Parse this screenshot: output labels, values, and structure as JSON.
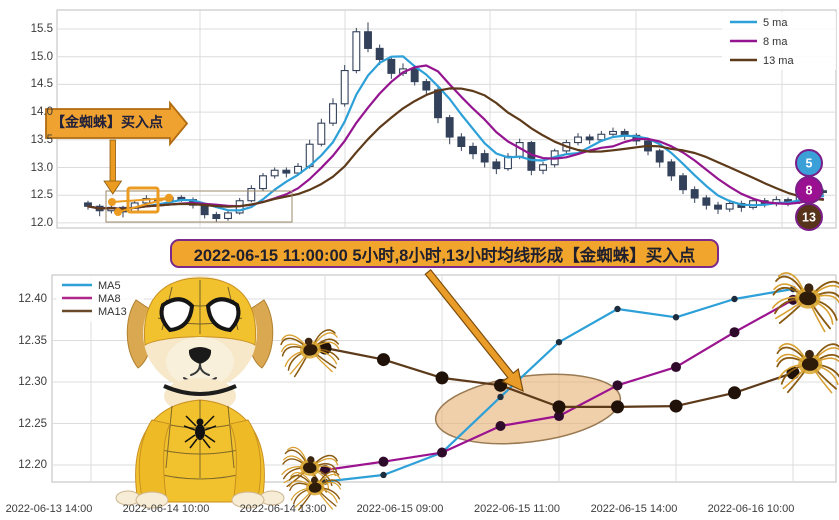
{
  "callout": {
    "text": "2022-06-15 11:00:00 5小时,8小时,13小时均线形成【金蜘蛛】买入点"
  },
  "top_chart": {
    "annotation_label": "【金蜘蛛】买入点",
    "legend": [
      {
        "label": "5 ma",
        "color": "#2da0d8"
      },
      {
        "label": "8 ma",
        "color": "#951591"
      },
      {
        "label": "13 ma",
        "color": "#5d3a1a"
      }
    ],
    "badges": [
      {
        "label": "5",
        "color": "#3b9fd8"
      },
      {
        "label": "8",
        "color": "#9b1090"
      },
      {
        "label": "13",
        "color": "#57331a"
      }
    ]
  },
  "bottom_chart": {
    "legend": [
      {
        "label": "MA5",
        "color": "#2da0d8"
      },
      {
        "label": "MA8",
        "color": "#b0268a"
      },
      {
        "label": "MA13",
        "color": "#6b4a2a"
      }
    ]
  },
  "colors": {
    "candle": "#33415a",
    "grid": "#dcdcdc",
    "spine": "#bdbdbd",
    "orange": "#efa130",
    "orange_dark": "#a86a10",
    "purple_border": "#7b2a8b",
    "ellipse_fill": "#e7b277",
    "ellipse_stroke": "#9a7a52"
  },
  "chart_data": [
    {
      "type": "candlestick",
      "title": "",
      "ylabel": "",
      "ylim": [
        11.95,
        15.75
      ],
      "y_ticks": [
        "15.5",
        "15.0",
        "14.5",
        "14.0",
        "13.5",
        "13.0",
        "12.5",
        "12.0"
      ],
      "y_tick_values": [
        15.5,
        15.0,
        14.5,
        14.0,
        13.5,
        13.0,
        12.5,
        12.0
      ],
      "grid": true,
      "legend_position": "upper right",
      "ma_windows": [
        5,
        8,
        13
      ],
      "ma_colors": [
        "#2da0d8",
        "#951591",
        "#5d3a1a"
      ],
      "candles_ohlc": [
        [
          12.36,
          12.4,
          12.24,
          12.3
        ],
        [
          12.3,
          12.34,
          12.12,
          12.22
        ],
        [
          12.22,
          12.33,
          12.17,
          12.28
        ],
        [
          12.28,
          12.31,
          12.1,
          12.2
        ],
        [
          12.2,
          12.4,
          12.17,
          12.36
        ],
        [
          12.36,
          12.5,
          12.33,
          12.44
        ],
        [
          12.44,
          12.49,
          12.34,
          12.4
        ],
        [
          12.4,
          12.52,
          12.37,
          12.46
        ],
        [
          12.46,
          12.5,
          12.38,
          12.42
        ],
        [
          12.42,
          12.46,
          12.26,
          12.32
        ],
        [
          12.32,
          12.35,
          12.08,
          12.15
        ],
        [
          12.15,
          12.2,
          12.02,
          12.08
        ],
        [
          12.08,
          12.24,
          12.04,
          12.18
        ],
        [
          12.18,
          12.45,
          12.15,
          12.4
        ],
        [
          12.4,
          12.68,
          12.37,
          12.62
        ],
        [
          12.62,
          12.9,
          12.58,
          12.85
        ],
        [
          12.85,
          13.0,
          12.8,
          12.95
        ],
        [
          12.95,
          13.0,
          12.82,
          12.9
        ],
        [
          12.9,
          13.08,
          12.86,
          13.02
        ],
        [
          13.02,
          13.5,
          12.98,
          13.42
        ],
        [
          13.42,
          13.88,
          13.38,
          13.8
        ],
        [
          13.8,
          14.25,
          13.75,
          14.15
        ],
        [
          14.15,
          14.85,
          14.1,
          14.75
        ],
        [
          14.75,
          15.52,
          14.7,
          15.45
        ],
        [
          15.45,
          15.62,
          15.08,
          15.15
        ],
        [
          15.15,
          15.22,
          14.85,
          14.95
        ],
        [
          14.95,
          15.0,
          14.6,
          14.7
        ],
        [
          14.7,
          14.88,
          14.65,
          14.78
        ],
        [
          14.78,
          14.82,
          14.48,
          14.55
        ],
        [
          14.55,
          14.6,
          14.3,
          14.4
        ],
        [
          14.4,
          14.48,
          13.8,
          13.9
        ],
        [
          13.9,
          13.95,
          13.42,
          13.55
        ],
        [
          13.55,
          13.62,
          13.3,
          13.38
        ],
        [
          13.38,
          13.45,
          13.15,
          13.25
        ],
        [
          13.25,
          13.32,
          13.0,
          13.1
        ],
        [
          13.1,
          13.16,
          12.88,
          12.98
        ],
        [
          12.98,
          13.26,
          12.94,
          13.2
        ],
        [
          13.2,
          13.52,
          13.15,
          13.45
        ],
        [
          13.45,
          13.48,
          12.86,
          12.95
        ],
        [
          12.95,
          13.1,
          12.88,
          13.05
        ],
        [
          13.05,
          13.34,
          13.0,
          13.3
        ],
        [
          13.3,
          13.5,
          13.25,
          13.45
        ],
        [
          13.45,
          13.62,
          13.4,
          13.55
        ],
        [
          13.55,
          13.6,
          13.42,
          13.5
        ],
        [
          13.5,
          13.66,
          13.46,
          13.6
        ],
        [
          13.6,
          13.72,
          13.55,
          13.65
        ],
        [
          13.65,
          13.7,
          13.5,
          13.58
        ],
        [
          13.58,
          13.62,
          13.4,
          13.48
        ],
        [
          13.48,
          13.52,
          13.22,
          13.3
        ],
        [
          13.3,
          13.34,
          13.0,
          13.1
        ],
        [
          13.1,
          13.15,
          12.76,
          12.85
        ],
        [
          12.85,
          12.9,
          12.52,
          12.6
        ],
        [
          12.6,
          12.66,
          12.36,
          12.45
        ],
        [
          12.45,
          12.5,
          12.24,
          12.32
        ],
        [
          12.32,
          12.38,
          12.16,
          12.25
        ],
        [
          12.25,
          12.42,
          12.2,
          12.35
        ],
        [
          12.35,
          12.4,
          12.2,
          12.28
        ],
        [
          12.28,
          12.46,
          12.24,
          12.4
        ],
        [
          12.4,
          12.45,
          12.28,
          12.35
        ],
        [
          12.35,
          12.48,
          12.3,
          12.42
        ],
        [
          12.42,
          12.46,
          12.3,
          12.38
        ],
        [
          12.38,
          12.56,
          12.34,
          12.5
        ],
        [
          12.5,
          12.64,
          12.46,
          12.58
        ],
        [
          12.58,
          12.62,
          12.48,
          12.55
        ]
      ]
    },
    {
      "type": "line",
      "title": "",
      "ylim": [
        12.175,
        12.425
      ],
      "y_ticks": [
        "12.40",
        "12.35",
        "12.30",
        "12.25",
        "12.20"
      ],
      "y_tick_values": [
        12.4,
        12.35,
        12.3,
        12.25,
        12.2
      ],
      "x_tick_labels": [
        "2022-06-13 14:00",
        "2022-06-14 10:00",
        "2022-06-14 13:00",
        "2022-06-15 09:00",
        "2022-06-15 11:00",
        "2022-06-15 14:00",
        "2022-06-16 10:00"
      ],
      "grid": true,
      "legend_position": "upper left",
      "x_positions_gridline_units": [
        2,
        2.5,
        3,
        3.5,
        4,
        4.5,
        5,
        5.5,
        6
      ],
      "series": [
        {
          "name": "MA5",
          "color": "#2da0d8",
          "marker_color": "#1d2d3e",
          "marker_size": 3.2,
          "values": [
            12.18,
            12.188,
            12.215,
            12.282,
            12.348,
            12.388,
            12.378,
            12.4,
            12.412
          ]
        },
        {
          "name": "MA8",
          "color": "#9c1390",
          "marker_color": "#2e0b2a",
          "marker_size": 5.0,
          "values": [
            12.194,
            12.204,
            12.215,
            12.247,
            12.259,
            12.296,
            12.318,
            12.36,
            12.399
          ]
        },
        {
          "name": "MA13",
          "color": "#5d3a1a",
          "marker_color": "#201208",
          "marker_size": 6.5,
          "values": [
            12.341,
            12.327,
            12.305,
            12.296,
            12.27,
            12.27,
            12.271,
            12.287,
            12.311
          ]
        }
      ],
      "annotations": [
        "golden-spider-ellipse",
        "buy-point-arrow"
      ]
    }
  ]
}
